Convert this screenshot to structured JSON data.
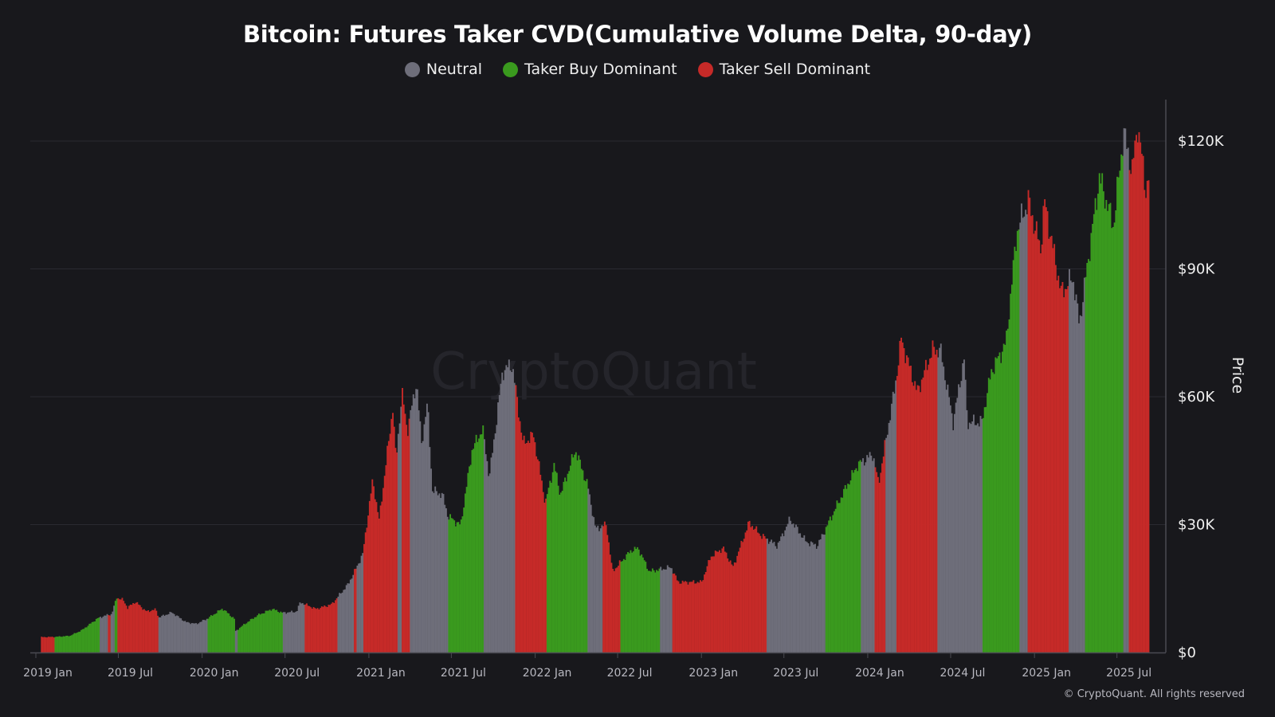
{
  "chart_data": {
    "type": "bar",
    "title": "Bitcoin: Futures Taker CVD(Cumulative Volume Delta, 90-day)",
    "ylabel": "Price",
    "ylim": [
      0,
      130000
    ],
    "y_ticks": [
      "$0",
      "$30K",
      "$60K",
      "$90K",
      "$120K"
    ],
    "y_tick_values": [
      0,
      30000,
      60000,
      90000,
      120000
    ],
    "x_ticks": [
      "2019 Jan",
      "2019 Jul",
      "2020 Jan",
      "2020 Jul",
      "2021 Jan",
      "2021 Jul",
      "2022 Jan",
      "2022 Jul",
      "2023 Jan",
      "2023 Jul",
      "2024 Jan",
      "2024 Jul",
      "2025 Jan",
      "2025 Jul"
    ],
    "x_tick_dates": [
      "2019-01-01",
      "2019-07-01",
      "2020-01-01",
      "2020-07-01",
      "2021-01-01",
      "2021-07-01",
      "2022-01-01",
      "2022-07-01",
      "2023-01-01",
      "2023-07-01",
      "2024-01-01",
      "2024-07-01",
      "2025-01-01",
      "2025-07-01"
    ],
    "grid": true,
    "legend": {
      "placement": "top-center",
      "entries": [
        {
          "key": "neutral",
          "label": "Neutral",
          "color": "#6e6e7a"
        },
        {
          "key": "buy",
          "label": "Taker Buy Dominant",
          "color": "#3a9a1e"
        },
        {
          "key": "sell",
          "label": "Taker Sell Dominant",
          "color": "#c62a28"
        }
      ]
    },
    "price": [
      [
        "2019-01-12",
        3600
      ],
      [
        "2019-02-10",
        3650
      ],
      [
        "2019-03-15",
        3900
      ],
      [
        "2019-04-10",
        5200
      ],
      [
        "2019-05-15",
        8000
      ],
      [
        "2019-05-30",
        8600
      ],
      [
        "2019-06-15",
        9000
      ],
      [
        "2019-06-26",
        12900
      ],
      [
        "2019-07-10",
        12300
      ],
      [
        "2019-07-20",
        10500
      ],
      [
        "2019-08-06",
        11900
      ],
      [
        "2019-08-30",
        9600
      ],
      [
        "2019-09-20",
        10100
      ],
      [
        "2019-09-26",
        8200
      ],
      [
        "2019-10-25",
        9400
      ],
      [
        "2019-11-25",
        7100
      ],
      [
        "2019-12-18",
        6700
      ],
      [
        "2020-01-12",
        8000
      ],
      [
        "2020-02-13",
        10300
      ],
      [
        "2020-03-10",
        7900
      ],
      [
        "2020-03-13",
        5000
      ],
      [
        "2020-04-01",
        6600
      ],
      [
        "2020-04-30",
        8700
      ],
      [
        "2020-06-01",
        10200
      ],
      [
        "2020-06-24",
        9300
      ],
      [
        "2020-07-25",
        9600
      ],
      [
        "2020-08-02",
        11800
      ],
      [
        "2020-09-05",
        10200
      ],
      [
        "2020-10-10",
        11300
      ],
      [
        "2020-10-23",
        13000
      ],
      [
        "2020-11-15",
        16000
      ],
      [
        "2020-11-30",
        19200
      ],
      [
        "2020-12-17",
        23000
      ],
      [
        "2021-01-08",
        40500
      ],
      [
        "2021-01-22",
        31000
      ],
      [
        "2021-02-21",
        57500
      ],
      [
        "2021-02-28",
        45000
      ],
      [
        "2021-03-13",
        61000
      ],
      [
        "2021-03-25",
        52000
      ],
      [
        "2021-04-14",
        63500
      ],
      [
        "2021-04-25",
        49000
      ],
      [
        "2021-05-08",
        58500
      ],
      [
        "2021-05-19",
        38000
      ],
      [
        "2021-06-10",
        37000
      ],
      [
        "2021-06-22",
        32000
      ],
      [
        "2021-07-20",
        29800
      ],
      [
        "2021-08-14",
        47500
      ],
      [
        "2021-09-06",
        52500
      ],
      [
        "2021-09-21",
        41000
      ],
      [
        "2021-10-20",
        66000
      ],
      [
        "2021-11-10",
        67500
      ],
      [
        "2021-12-04",
        49000
      ],
      [
        "2021-12-27",
        51000
      ],
      [
        "2022-01-22",
        35000
      ],
      [
        "2022-02-10",
        44000
      ],
      [
        "2022-02-24",
        37000
      ],
      [
        "2022-03-29",
        47500
      ],
      [
        "2022-04-25",
        39000
      ],
      [
        "2022-05-12",
        29000
      ],
      [
        "2022-06-05",
        30000
      ],
      [
        "2022-06-18",
        19000
      ],
      [
        "2022-07-30",
        24000
      ],
      [
        "2022-08-14",
        24400
      ],
      [
        "2022-09-07",
        19000
      ],
      [
        "2022-10-25",
        20000
      ],
      [
        "2022-11-09",
        16500
      ],
      [
        "2022-12-31",
        16500
      ],
      [
        "2023-01-20",
        22500
      ],
      [
        "2023-02-16",
        24500
      ],
      [
        "2023-03-10",
        20000
      ],
      [
        "2023-04-14",
        30500
      ],
      [
        "2023-05-10",
        27500
      ],
      [
        "2023-06-15",
        25000
      ],
      [
        "2023-07-13",
        31300
      ],
      [
        "2023-08-17",
        26000
      ],
      [
        "2023-09-11",
        25000
      ],
      [
        "2023-10-24",
        34500
      ],
      [
        "2023-12-08",
        44000
      ],
      [
        "2024-01-11",
        46500
      ],
      [
        "2024-01-23",
        39500
      ],
      [
        "2024-02-28",
        62000
      ],
      [
        "2024-03-13",
        73500
      ],
      [
        "2024-04-17",
        61000
      ],
      [
        "2024-05-21",
        71000
      ],
      [
        "2024-06-07",
        71000
      ],
      [
        "2024-07-05",
        54000
      ],
      [
        "2024-07-29",
        69000
      ],
      [
        "2024-08-05",
        54000
      ],
      [
        "2024-09-06",
        54000
      ],
      [
        "2024-09-27",
        66000
      ],
      [
        "2024-10-29",
        72500
      ],
      [
        "2024-11-22",
        99000
      ],
      [
        "2024-12-17",
        106000
      ],
      [
        "2025-01-13",
        94500
      ],
      [
        "2025-01-21",
        106000
      ],
      [
        "2025-02-27",
        84500
      ],
      [
        "2025-03-25",
        88000
      ],
      [
        "2025-04-08",
        77000
      ],
      [
        "2025-05-22",
        111500
      ],
      [
        "2025-06-22",
        100000
      ],
      [
        "2025-07-14",
        122000
      ],
      [
        "2025-08-02",
        113000
      ],
      [
        "2025-08-14",
        124000
      ],
      [
        "2025-09-01",
        108500
      ],
      [
        "2025-09-08",
        112000
      ]
    ],
    "regimes": [
      [
        "2019-01-12",
        "2019-02-10",
        "sell"
      ],
      [
        "2019-02-10",
        "2019-05-21",
        "buy"
      ],
      [
        "2019-05-21",
        "2019-06-06",
        "neutral"
      ],
      [
        "2019-06-06",
        "2019-06-14",
        "sell"
      ],
      [
        "2019-06-14",
        "2019-06-22",
        "neutral"
      ],
      [
        "2019-06-22",
        "2019-06-28",
        "buy"
      ],
      [
        "2019-06-28",
        "2019-09-26",
        "sell"
      ],
      [
        "2019-09-26",
        "2020-01-12",
        "neutral"
      ],
      [
        "2020-01-12",
        "2020-03-12",
        "buy"
      ],
      [
        "2020-03-12",
        "2020-03-17",
        "neutral"
      ],
      [
        "2020-03-17",
        "2020-06-24",
        "buy"
      ],
      [
        "2020-06-24",
        "2020-08-12",
        "neutral"
      ],
      [
        "2020-08-12",
        "2020-10-23",
        "sell"
      ],
      [
        "2020-10-23",
        "2020-11-27",
        "neutral"
      ],
      [
        "2020-11-27",
        "2020-12-05",
        "sell"
      ],
      [
        "2020-12-05",
        "2020-12-20",
        "neutral"
      ],
      [
        "2020-12-20",
        "2021-03-05",
        "sell"
      ],
      [
        "2021-03-05",
        "2021-03-14",
        "neutral"
      ],
      [
        "2021-03-14",
        "2021-03-30",
        "sell"
      ],
      [
        "2021-03-30",
        "2021-06-22",
        "neutral"
      ],
      [
        "2021-06-22",
        "2021-09-10",
        "buy"
      ],
      [
        "2021-09-10",
        "2021-11-17",
        "neutral"
      ],
      [
        "2021-11-17",
        "2022-01-26",
        "sell"
      ],
      [
        "2022-01-26",
        "2022-04-24",
        "buy"
      ],
      [
        "2022-04-24",
        "2022-05-27",
        "neutral"
      ],
      [
        "2022-05-27",
        "2022-07-06",
        "sell"
      ],
      [
        "2022-07-06",
        "2022-10-02",
        "buy"
      ],
      [
        "2022-10-02",
        "2022-10-28",
        "neutral"
      ],
      [
        "2022-10-28",
        "2023-05-23",
        "sell"
      ],
      [
        "2023-05-23",
        "2023-09-28",
        "neutral"
      ],
      [
        "2023-09-28",
        "2023-12-17",
        "buy"
      ],
      [
        "2023-12-17",
        "2024-01-16",
        "neutral"
      ],
      [
        "2024-01-16",
        "2024-02-09",
        "sell"
      ],
      [
        "2024-02-09",
        "2024-03-03",
        "neutral"
      ],
      [
        "2024-03-03",
        "2024-06-02",
        "sell"
      ],
      [
        "2024-06-02",
        "2024-09-08",
        "neutral"
      ],
      [
        "2024-09-08",
        "2024-11-29",
        "buy"
      ],
      [
        "2024-11-29",
        "2024-12-16",
        "neutral"
      ],
      [
        "2024-12-16",
        "2025-03-16",
        "sell"
      ],
      [
        "2025-03-16",
        "2025-04-20",
        "neutral"
      ],
      [
        "2025-04-20",
        "2025-07-15",
        "buy"
      ],
      [
        "2025-07-15",
        "2025-07-27",
        "neutral"
      ],
      [
        "2025-07-27",
        "2025-09-08",
        "sell"
      ]
    ]
  },
  "watermark": "CryptoQuant",
  "copyright": "© CryptoQuant. All rights reserved"
}
